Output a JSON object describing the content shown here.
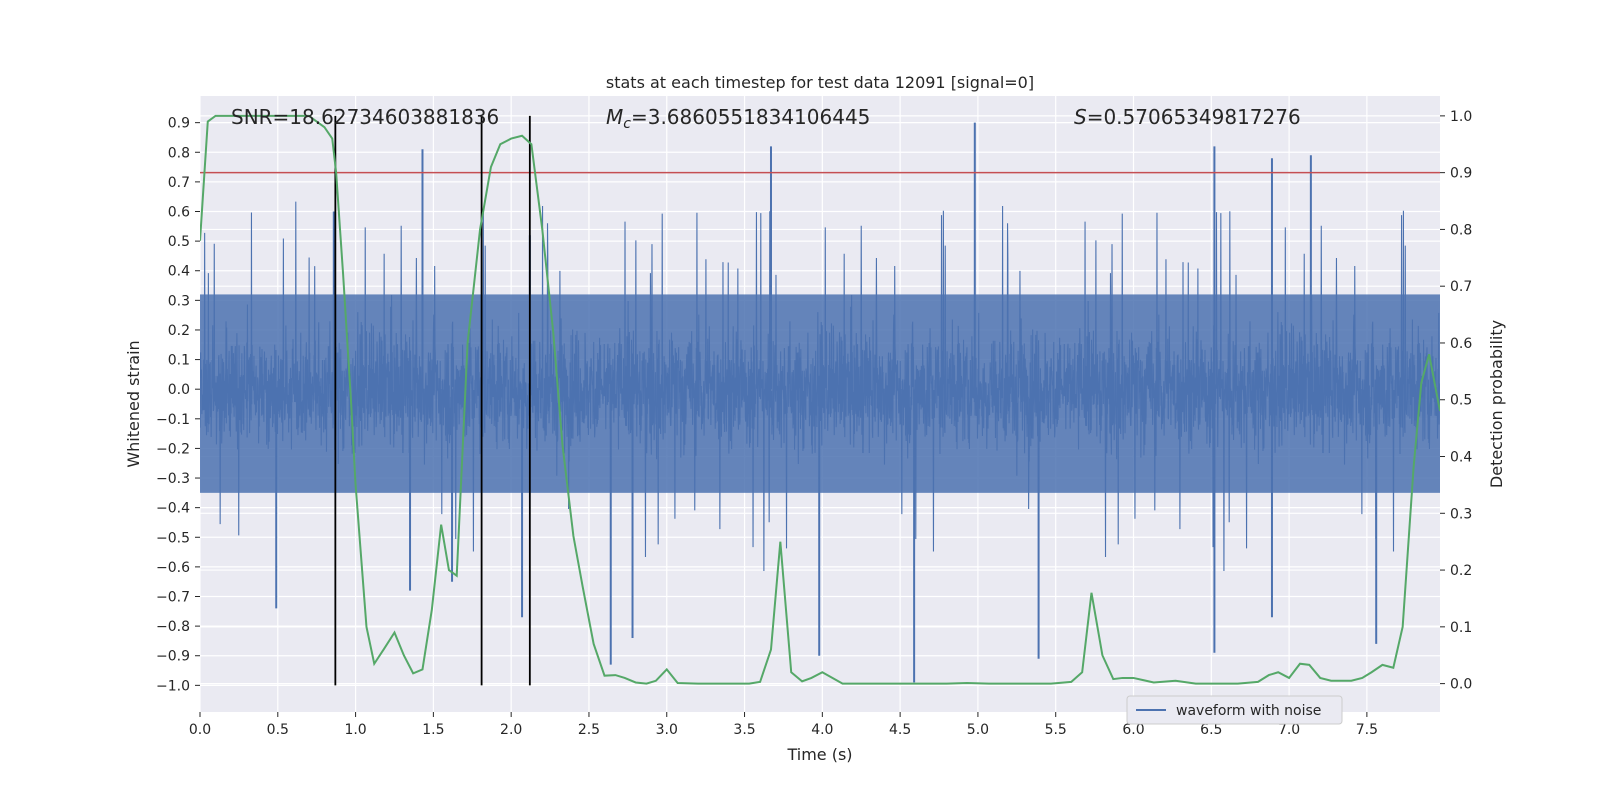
{
  "chart_data": {
    "type": "line",
    "title": "stats at each timestep for test data 12091 [signal=0]",
    "xlabel": "Time (s)",
    "ylabel": "Whitened strain",
    "y2label": "Detection probability",
    "xlim": [
      0.0,
      7.97
    ],
    "ylim": [
      -1.09,
      0.99
    ],
    "y2lim": [
      -0.05,
      1.035
    ],
    "x_ticks": [
      0.0,
      0.5,
      1.0,
      1.5,
      2.0,
      2.5,
      3.0,
      3.5,
      4.0,
      4.5,
      5.0,
      5.5,
      6.0,
      6.5,
      7.0,
      7.5
    ],
    "x_tick_labels": [
      "0.0",
      "0.5",
      "1.0",
      "1.5",
      "2.0",
      "2.5",
      "3.0",
      "3.5",
      "4.0",
      "4.5",
      "5.0",
      "5.5",
      "6.0",
      "6.5",
      "7.0",
      "7.5"
    ],
    "y_ticks": [
      0.9,
      0.8,
      0.7,
      0.6,
      0.5,
      0.4,
      0.3,
      0.2,
      0.1,
      0.0,
      -0.1,
      -0.2,
      -0.3,
      -0.4,
      -0.5,
      -0.6,
      -0.7,
      -0.8,
      -0.9,
      -1.0
    ],
    "y_tick_labels": [
      "0.9",
      "0.8",
      "0.7",
      "0.6",
      "0.5",
      "0.4",
      "0.3",
      "0.2",
      "0.1",
      "0.0",
      "−0.1",
      "−0.2",
      "−0.3",
      "−0.4",
      "−0.5",
      "−0.6",
      "−0.7",
      "−0.8",
      "−0.9",
      "−1.0"
    ],
    "y2_ticks": [
      1.0,
      0.9,
      0.8,
      0.7,
      0.6,
      0.5,
      0.4,
      0.3,
      0.2,
      0.1,
      0.0
    ],
    "y2_tick_labels": [
      "1.0",
      "0.9",
      "0.8",
      "0.7",
      "0.6",
      "0.5",
      "0.4",
      "0.3",
      "0.2",
      "0.1",
      "0.0"
    ],
    "grid": true,
    "legend_placement": "lower-right",
    "series": [
      {
        "name": "waveform with noise",
        "axis": "left",
        "color": "#4c72b0",
        "envelope_note": "dense noise; typical band",
        "band": [
          -0.45,
          0.42
        ],
        "spikes": [
          {
            "x": 0.86,
            "y": 0.6
          },
          {
            "x": 1.43,
            "y": 0.81
          },
          {
            "x": 1.62,
            "y": -0.65
          },
          {
            "x": 2.07,
            "y": -0.77
          },
          {
            "x": 2.12,
            "y": 0.52
          },
          {
            "x": 2.64,
            "y": -0.93
          },
          {
            "x": 2.78,
            "y": -0.84
          },
          {
            "x": 3.67,
            "y": 0.82
          },
          {
            "x": 3.98,
            "y": -0.9
          },
          {
            "x": 4.59,
            "y": -0.99
          },
          {
            "x": 4.98,
            "y": 0.9
          },
          {
            "x": 5.39,
            "y": -0.91
          },
          {
            "x": 6.52,
            "y": 0.82
          },
          {
            "x": 6.52,
            "y": -0.89
          },
          {
            "x": 6.89,
            "y": 0.78
          },
          {
            "x": 6.89,
            "y": -0.77
          },
          {
            "x": 7.14,
            "y": 0.79
          },
          {
            "x": 7.56,
            "y": -0.86
          },
          {
            "x": 0.49,
            "y": -0.74
          },
          {
            "x": 1.35,
            "y": -0.68
          }
        ]
      },
      {
        "name": "",
        "axis": "right",
        "color": "#55a868",
        "x": [
          0.0,
          0.05,
          0.1,
          0.2,
          0.3,
          0.4,
          0.5,
          0.6,
          0.7,
          0.75,
          0.8,
          0.85,
          0.875,
          0.92,
          0.97,
          1.0,
          1.07,
          1.12,
          1.18,
          1.25,
          1.31,
          1.37,
          1.43,
          1.49,
          1.55,
          1.6,
          1.65,
          1.72,
          1.8,
          1.87,
          1.93,
          2.0,
          2.07,
          2.13,
          2.2,
          2.27,
          2.33,
          2.4,
          2.46,
          2.53,
          2.6,
          2.67,
          2.73,
          2.8,
          2.87,
          2.93,
          3.0,
          3.07,
          3.2,
          3.33,
          3.47,
          3.53,
          3.6,
          3.67,
          3.73,
          3.8,
          3.87,
          3.93,
          4.0,
          4.13,
          4.27,
          4.4,
          4.53,
          4.67,
          4.8,
          4.93,
          5.07,
          5.2,
          5.33,
          5.47,
          5.6,
          5.67,
          5.73,
          5.8,
          5.87,
          5.93,
          6.0,
          6.13,
          6.27,
          6.4,
          6.53,
          6.67,
          6.8,
          6.87,
          6.93,
          7.0,
          7.07,
          7.13,
          7.2,
          7.27,
          7.33,
          7.4,
          7.47,
          7.53,
          7.6,
          7.67,
          7.73,
          7.8,
          7.85,
          7.9,
          7.97
        ],
        "y": [
          0.78,
          0.99,
          1.0,
          1.0,
          1.0,
          1.0,
          1.0,
          1.0,
          1.0,
          0.99,
          0.98,
          0.96,
          0.9,
          0.72,
          0.5,
          0.35,
          0.1,
          0.035,
          0.06,
          0.09,
          0.05,
          0.018,
          0.025,
          0.13,
          0.28,
          0.2,
          0.19,
          0.6,
          0.8,
          0.91,
          0.95,
          0.96,
          0.965,
          0.95,
          0.8,
          0.62,
          0.42,
          0.26,
          0.17,
          0.07,
          0.014,
          0.015,
          0.01,
          0.002,
          0.0,
          0.005,
          0.025,
          0.001,
          0.0,
          0.0,
          0.0,
          0.0,
          0.003,
          0.06,
          0.25,
          0.02,
          0.004,
          0.01,
          0.02,
          0.0,
          0.0,
          0.0,
          0.0,
          0.0,
          0.0,
          0.001,
          0.0,
          0.0,
          0.0,
          0.0,
          0.003,
          0.02,
          0.16,
          0.05,
          0.008,
          0.01,
          0.01,
          0.002,
          0.005,
          0.0,
          0.0,
          0.0,
          0.003,
          0.015,
          0.02,
          0.01,
          0.035,
          0.033,
          0.01,
          0.005,
          0.005,
          0.005,
          0.01,
          0.02,
          0.033,
          0.028,
          0.1,
          0.38,
          0.53,
          0.58,
          0.48
        ]
      }
    ],
    "threshold": {
      "axis": "right",
      "value": 0.9,
      "color": "#c44e52"
    },
    "vlines": [
      0.87,
      1.81,
      2.12
    ],
    "annotations": {
      "snr": "SNR=18.62734603881836",
      "mc_symbol": "M",
      "mc_sub": "c",
      "mc_value": "=3.6860551834106445",
      "s_symbol": "S",
      "s_value": "=0.57065349817276"
    },
    "legend_label": "waveform with noise"
  }
}
